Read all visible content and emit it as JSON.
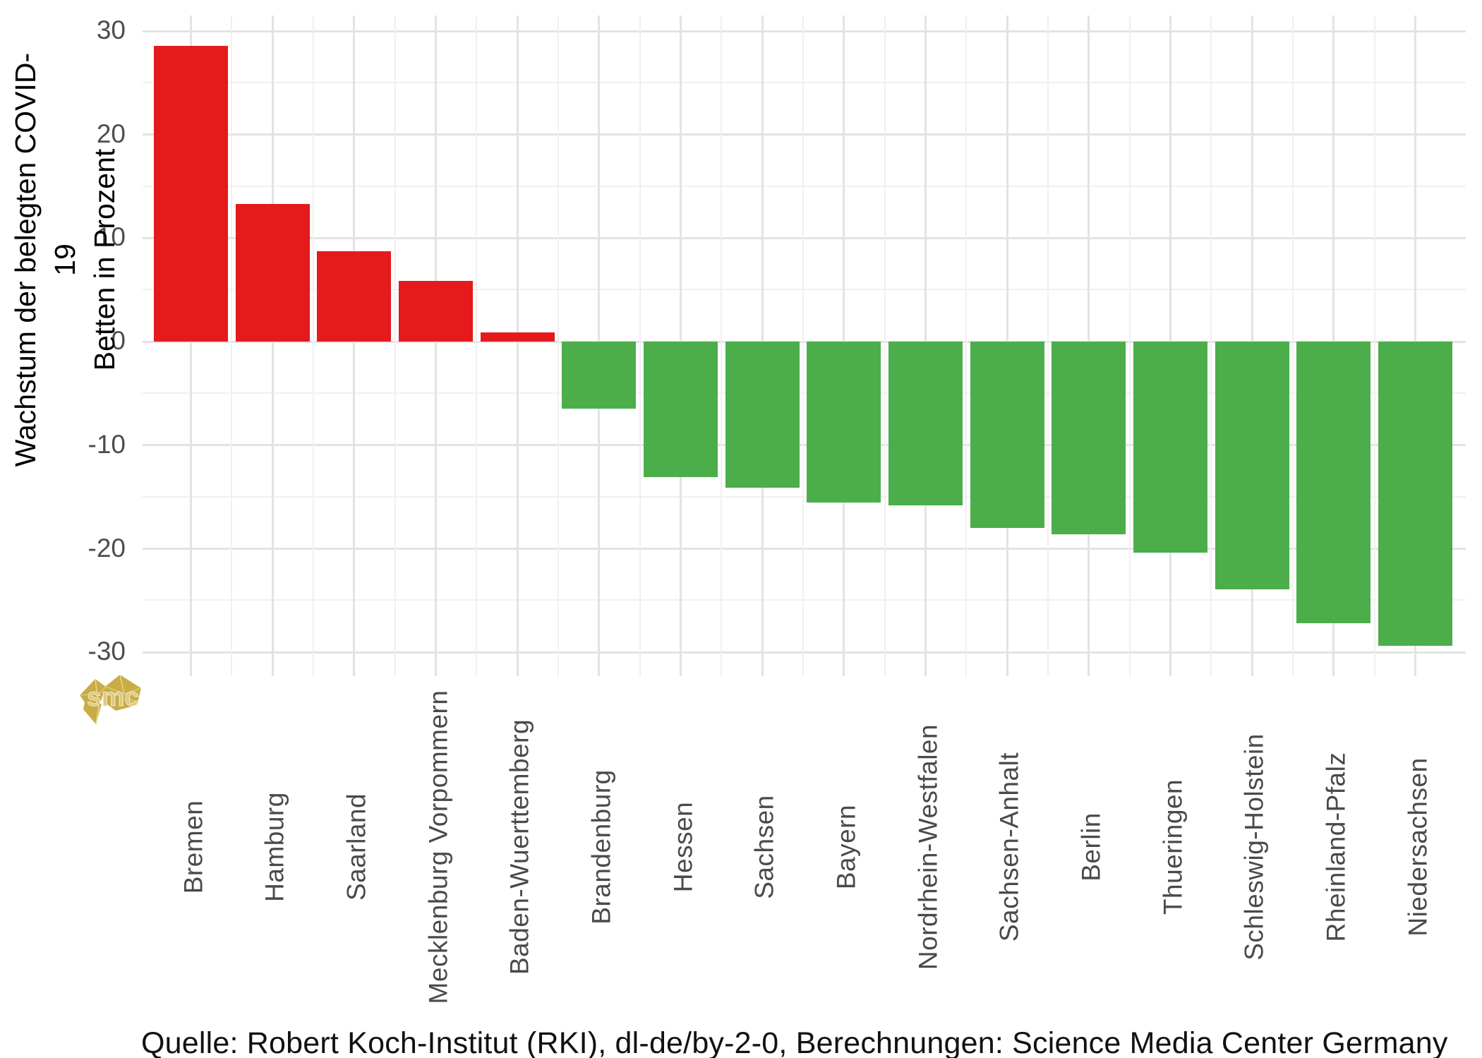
{
  "chart_data": {
    "type": "bar",
    "title": "",
    "ylabel_lines": [
      "Wachstum der belegten COVID-19",
      "Betten in Prozent"
    ],
    "xlabel": "",
    "categories": [
      "Bremen",
      "Hamburg",
      "Saarland",
      "Mecklenburg Vorpommern",
      "Baden-Wuerttemberg",
      "Brandenburg",
      "Hessen",
      "Sachsen",
      "Bayern",
      "Nordrhein-Westfalen",
      "Sachsen-Anhalt",
      "Berlin",
      "Thueringen",
      "Schleswig-Holstein",
      "Rheinland-Pfalz",
      "Niedersachsen"
    ],
    "values": [
      28.6,
      13.3,
      8.7,
      5.9,
      0.9,
      -6.5,
      -13.1,
      -14.1,
      -15.5,
      -15.8,
      -18.0,
      -18.6,
      -20.4,
      -23.9,
      -27.2,
      -29.4
    ],
    "unit": "percent",
    "y_ticks": [
      30,
      20,
      10,
      0,
      -10,
      -20,
      -30
    ],
    "y_minor_step": 5,
    "ylim": [
      -32.3,
      31.5
    ],
    "legend": "none",
    "grid": true,
    "colors": {
      "positive_bar": "#e41a1c",
      "negative_bar": "#4bae4a",
      "grid_major": "#e3e3e3",
      "grid_minor": "#f0f0f0",
      "axis_text": "#4d4d4d",
      "title_text": "#000000",
      "logo_gold": "#c9ac44",
      "logo_gold_light": "#dcc97c"
    },
    "caption": "Quelle: Robert Koch-Institut (RKI), dl-de/by-2-0, Berechnungen: Science Media Center Germany",
    "watermark": "smc"
  }
}
